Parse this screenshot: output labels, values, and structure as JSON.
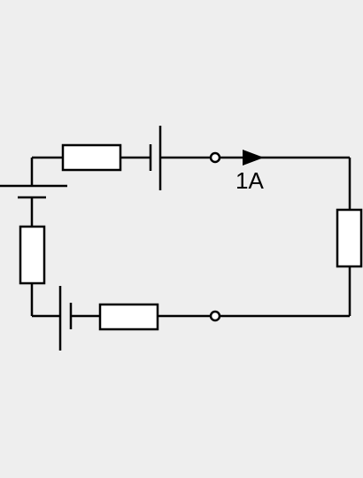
{
  "current_label": "1A",
  "colors": {
    "background": "#eeeeee",
    "stroke": "#000000",
    "resistor_fill": "#ffffff",
    "terminal_fill": "#ffffff"
  }
}
